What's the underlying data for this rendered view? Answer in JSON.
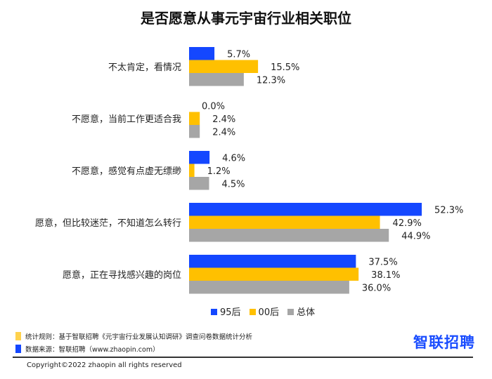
{
  "chart_data": {
    "type": "bar",
    "orientation": "horizontal",
    "title": "是否愿意从事元宇宙行业相关职位",
    "categories": [
      "不太肯定，看情况",
      "不愿意，当前工作更适合我",
      "不愿意，感觉有点虚无缥缈",
      "愿意，但比较迷茫，不知道怎么转行",
      "愿意，正在寻找感兴趣的岗位"
    ],
    "series": [
      {
        "name": "95后",
        "color": "#1447ff",
        "values": [
          5.7,
          0.0,
          4.6,
          52.3,
          37.5
        ]
      },
      {
        "name": "00后",
        "color": "#ffc000",
        "values": [
          15.5,
          2.4,
          1.2,
          42.9,
          38.1
        ]
      },
      {
        "name": "总体",
        "color": "#a6a6a6",
        "values": [
          12.3,
          2.4,
          4.5,
          44.9,
          36.0
        ]
      }
    ],
    "value_format": "%",
    "legend": "bottom",
    "grid": false
  },
  "footer": {
    "notes": [
      {
        "text": "统计规则：基于智联招聘《元宇宙行业发展认知调研》调查问卷数据统计分析",
        "color": "#ffd24d"
      },
      {
        "text": "数据来源：智联招聘（www.zhaopin.com）",
        "color": "#1447ff"
      }
    ],
    "logo": "智联招聘",
    "copyright": "Copyright©2022 zhaopin all rights reserved"
  }
}
